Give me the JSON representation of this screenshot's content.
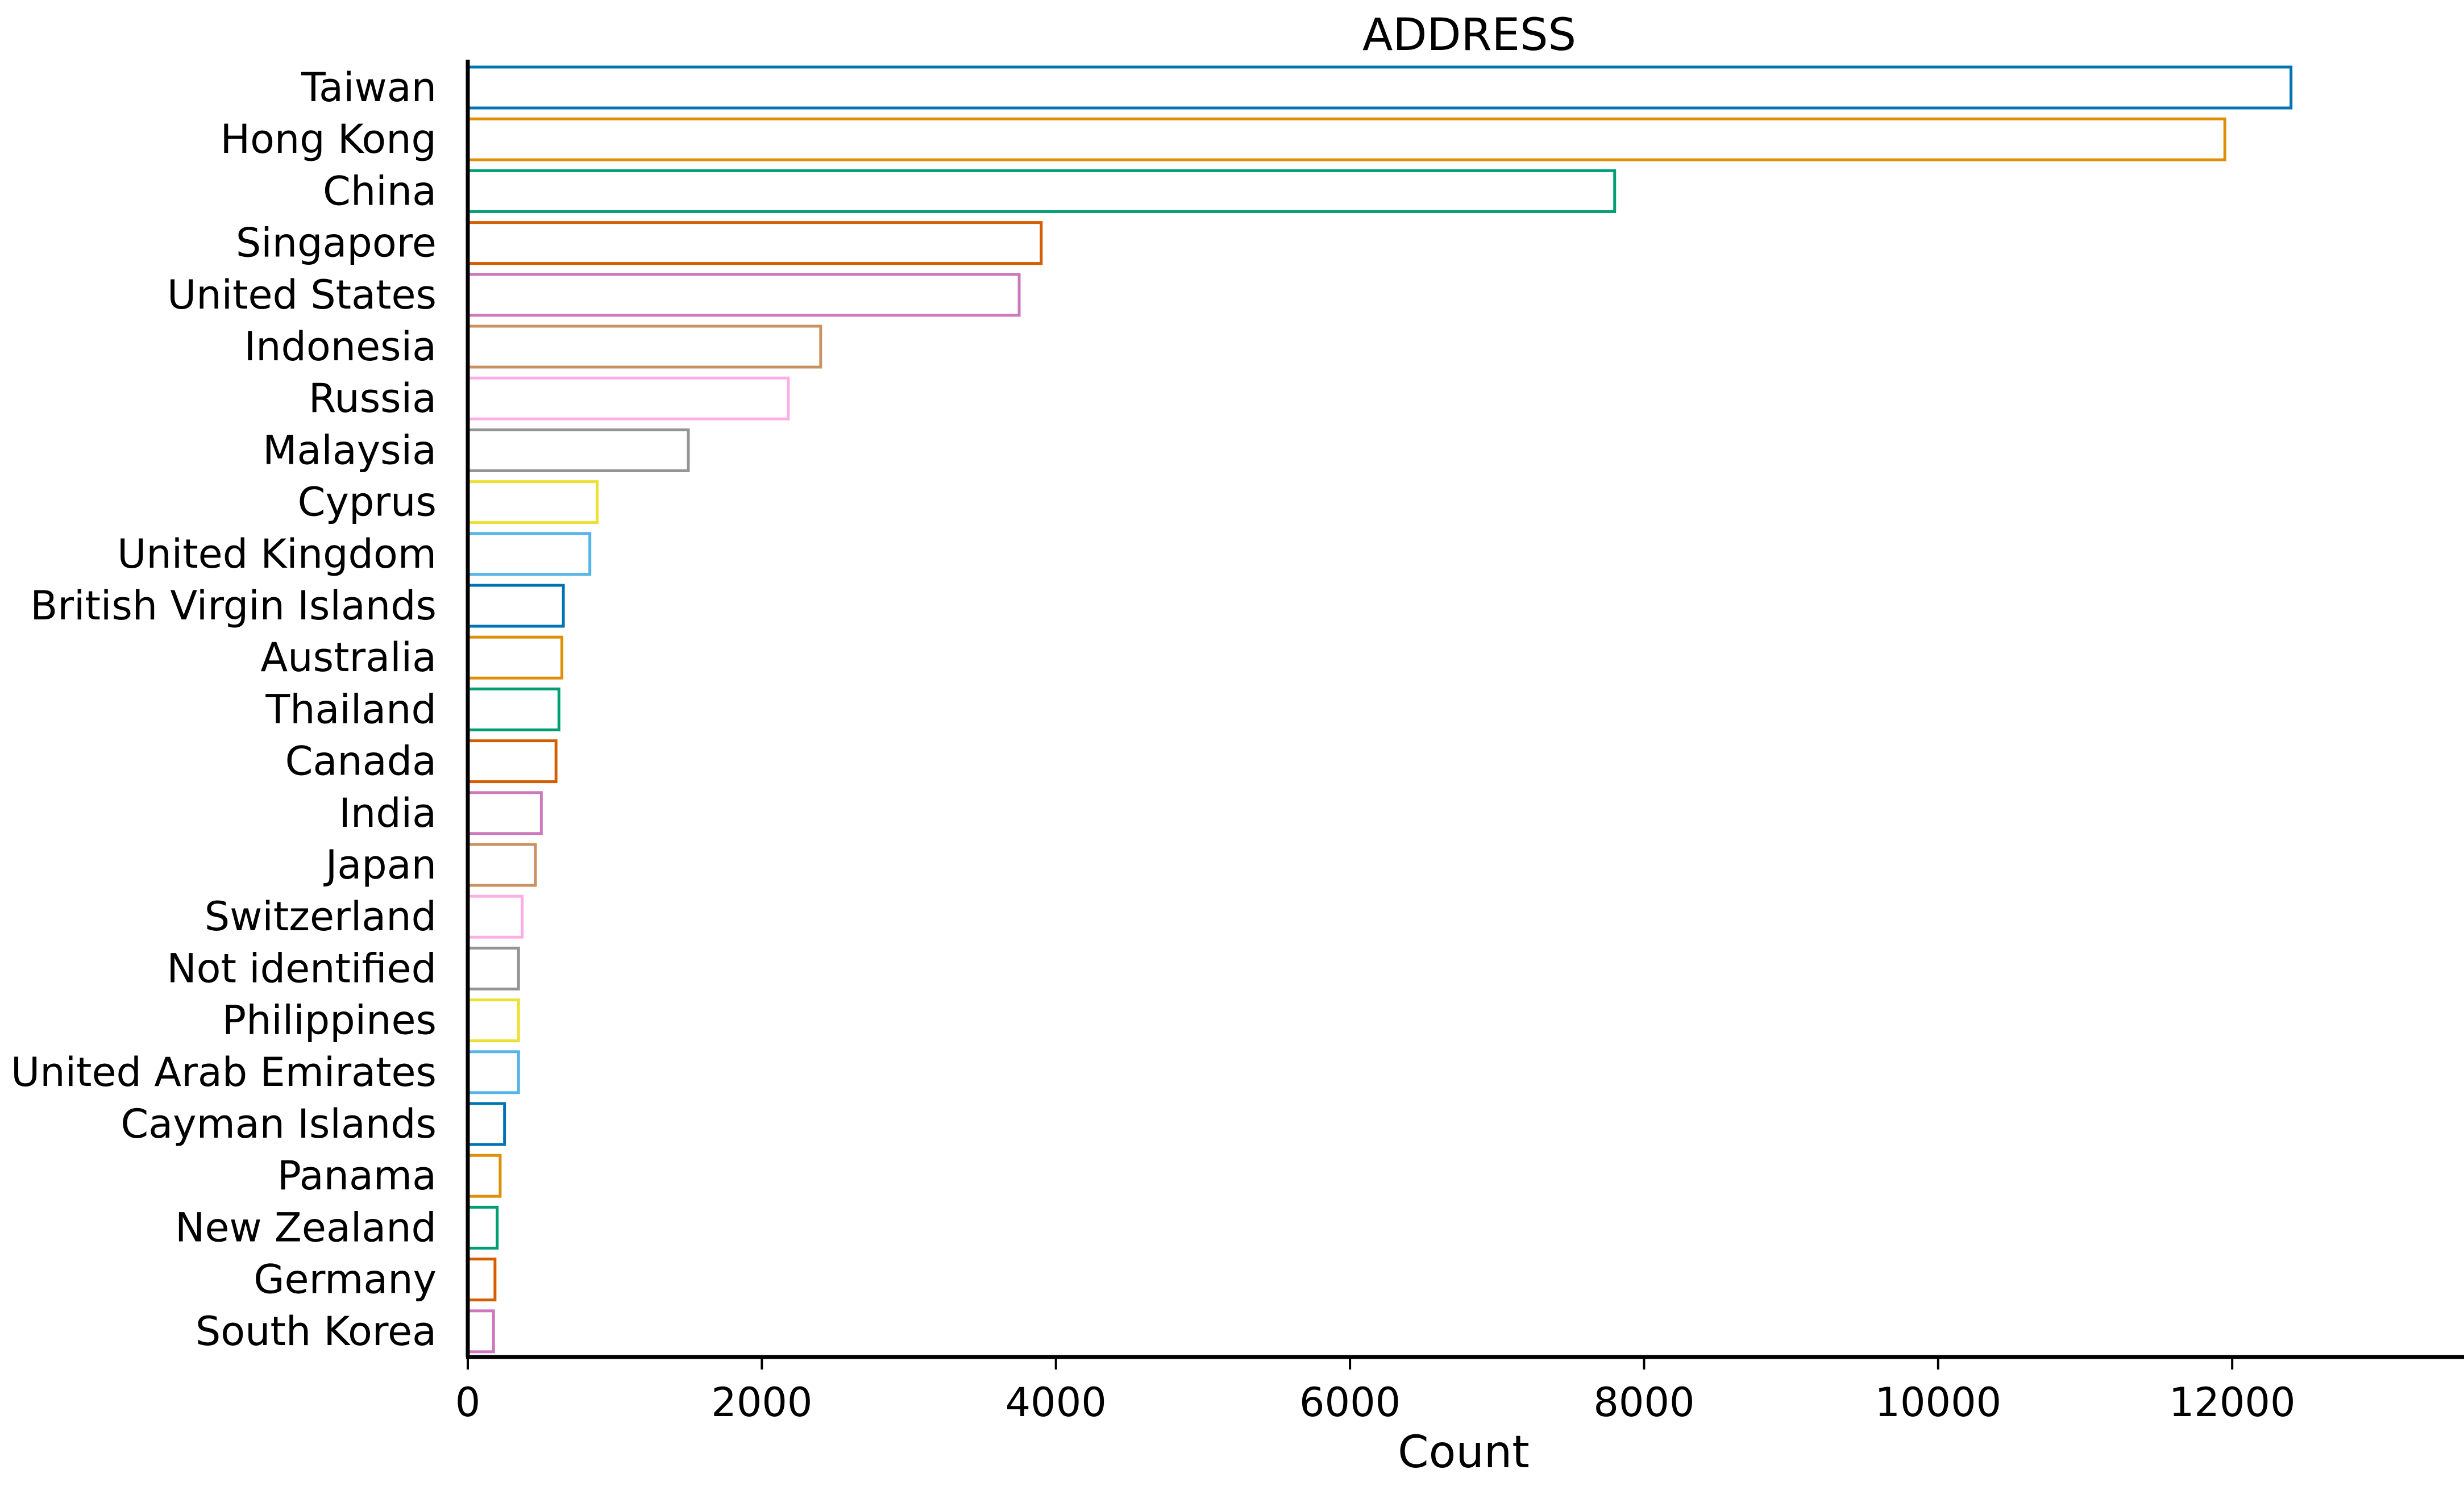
{
  "chart_data": {
    "type": "bar",
    "orientation": "horizontal",
    "title": "ADDRESS",
    "xlabel": "Count",
    "ylabel": "",
    "xlim": [
      0,
      12900
    ],
    "xticks": [
      0,
      2000,
      4000,
      6000,
      8000,
      10000,
      12000
    ],
    "grid": false,
    "legend": "none",
    "bar_style": "outline",
    "categories": [
      "Taiwan",
      "Hong Kong",
      "China",
      "Singapore",
      "United States",
      "Indonesia",
      "Russia",
      "Malaysia",
      "Cyprus",
      "United Kingdom",
      "British Virgin Islands",
      "Australia",
      "Thailand",
      "Canada",
      "India",
      "Japan",
      "Switzerland",
      "Not identified",
      "Philippines",
      "United Arab Emirates",
      "Cayman Islands",
      "Panama",
      "New Zealand",
      "Germany",
      "South Korea"
    ],
    "values": [
      12400,
      11950,
      7800,
      3900,
      3750,
      2400,
      2180,
      1500,
      880,
      830,
      650,
      640,
      620,
      600,
      500,
      460,
      370,
      345,
      345,
      345,
      250,
      220,
      200,
      185,
      175
    ],
    "palette": [
      "#0173b2",
      "#de8f05",
      "#029e73",
      "#d55e00",
      "#cc78bc",
      "#ca9161",
      "#fbafe4",
      "#949494",
      "#ece133",
      "#56b4e9"
    ]
  }
}
